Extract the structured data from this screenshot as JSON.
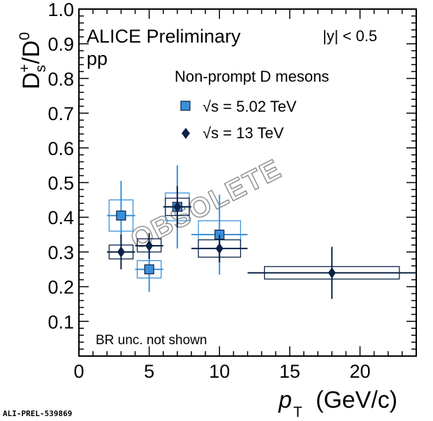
{
  "chart_data": {
    "type": "scatter",
    "title": "ALICE Preliminary",
    "system": "pp",
    "rapidity": "|y| < 0.5",
    "xlabel_main": "p",
    "xlabel_sub": "T",
    "xlabel_units": "(GeV/c)",
    "ylabel": "D_s^+/D^0",
    "xlim": [
      0,
      24
    ],
    "ylim": [
      0,
      1.0
    ],
    "x_ticks": [
      "0",
      "5",
      "10",
      "15",
      "20"
    ],
    "y_ticks": [
      "0.1",
      "0.2",
      "0.3",
      "0.4",
      "0.5",
      "0.6",
      "0.7",
      "0.8",
      "0.9",
      "1.0"
    ],
    "legend_header": "Non-prompt D mesons",
    "series": [
      {
        "name": "√s = 5.02 TeV",
        "marker": "square",
        "color": "#3a8fd9",
        "points": [
          {
            "x": 3,
            "xlo": 2,
            "xhi": 4,
            "y": 0.405,
            "stat_lo": 0.305,
            "stat_hi": 0.505,
            "syst_lo": 0.36,
            "syst_hi": 0.45
          },
          {
            "x": 5,
            "xlo": 4,
            "xhi": 6,
            "y": 0.25,
            "stat_lo": 0.185,
            "stat_hi": 0.315,
            "syst_lo": 0.225,
            "syst_hi": 0.275
          },
          {
            "x": 7,
            "xlo": 6,
            "xhi": 8,
            "y": 0.43,
            "stat_lo": 0.31,
            "stat_hi": 0.55,
            "syst_lo": 0.39,
            "syst_hi": 0.47
          },
          {
            "x": 10,
            "xlo": 8,
            "xhi": 12,
            "y": 0.35,
            "stat_lo": 0.235,
            "stat_hi": 0.465,
            "syst_lo": 0.31,
            "syst_hi": 0.39
          }
        ]
      },
      {
        "name": "√s = 13 TeV",
        "marker": "diamond",
        "color": "#0b2245",
        "points": [
          {
            "x": 3,
            "xlo": 2,
            "xhi": 4,
            "y": 0.3,
            "stat_lo": 0.25,
            "stat_hi": 0.35,
            "syst_lo": 0.28,
            "syst_hi": 0.32
          },
          {
            "x": 5,
            "xlo": 4,
            "xhi": 6,
            "y": 0.318,
            "stat_lo": 0.28,
            "stat_hi": 0.355,
            "syst_lo": 0.3,
            "syst_hi": 0.338
          },
          {
            "x": 7,
            "xlo": 6,
            "xhi": 8,
            "y": 0.43,
            "stat_lo": 0.37,
            "stat_hi": 0.49,
            "syst_lo": 0.405,
            "syst_hi": 0.455
          },
          {
            "x": 10,
            "xlo": 8,
            "xhi": 12,
            "y": 0.31,
            "stat_lo": 0.27,
            "stat_hi": 0.35,
            "syst_lo": 0.285,
            "syst_hi": 0.335
          },
          {
            "x": 18,
            "xlo": 12,
            "xhi": 24,
            "y": 0.24,
            "stat_lo": 0.165,
            "stat_hi": 0.315,
            "syst_lo": 0.222,
            "syst_hi": 0.258
          }
        ]
      }
    ],
    "note": "BR unc. not shown",
    "watermark": "OBSOLETE",
    "publication_id": "ALI-PREL-539869"
  }
}
